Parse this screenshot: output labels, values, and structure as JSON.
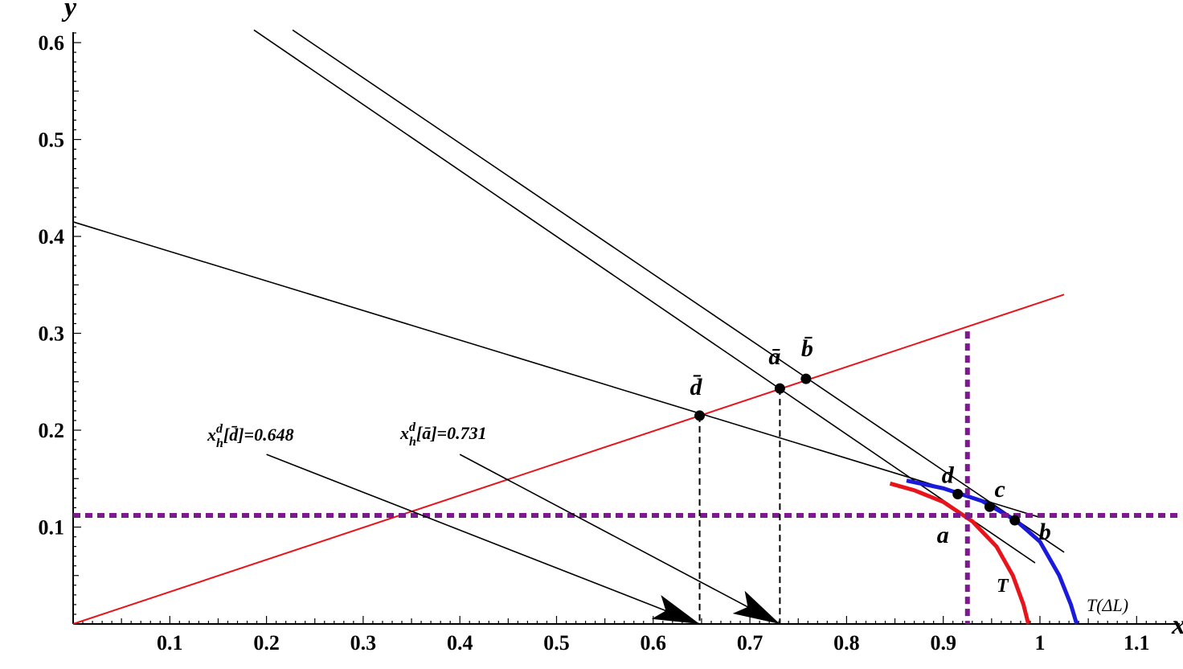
{
  "chart_data": {
    "type": "line",
    "xlabel": "x",
    "ylabel": "y",
    "xlim": [
      0,
      1.15
    ],
    "ylim": [
      0,
      0.61
    ],
    "x_ticks": [
      "0.1",
      "0.2",
      "0.3",
      "0.4",
      "0.5",
      "0.6",
      "0.7",
      "0.8",
      "0.9",
      "1",
      "1.1"
    ],
    "x_tick_values": [
      0.1,
      0.2,
      0.3,
      0.4,
      0.5,
      0.6,
      0.7,
      0.8,
      0.9,
      1.0,
      1.1
    ],
    "y_ticks": [
      "0.1",
      "0.2",
      "0.3",
      "0.4",
      "0.5",
      "0.6"
    ],
    "y_tick_values": [
      0.1,
      0.2,
      0.3,
      0.4,
      0.5,
      0.6
    ],
    "colors": {
      "ray": "#e8141b",
      "T": "#e8141b",
      "T_dL": "#1a1adb",
      "dotted": "#7a1a8c",
      "black": "#000000"
    },
    "ray": [
      [
        0.0,
        0.0
      ],
      [
        1.025,
        0.34
      ]
    ],
    "budget_lines": [
      [
        [
          0.0,
          0.415
        ],
        [
          1.0,
          0.11
        ]
      ],
      [
        [
          0.187,
          0.613
        ],
        [
          0.995,
          0.063
        ]
      ],
      [
        [
          0.227,
          0.613
        ],
        [
          1.025,
          0.074
        ]
      ]
    ],
    "curve_T": [
      [
        0.845,
        0.145
      ],
      [
        0.87,
        0.138
      ],
      [
        0.9,
        0.126
      ],
      [
        0.93,
        0.106
      ],
      [
        0.955,
        0.08
      ],
      [
        0.972,
        0.05
      ],
      [
        0.983,
        0.02
      ],
      [
        0.988,
        0.0
      ]
    ],
    "curve_T_dL": [
      [
        0.862,
        0.148
      ],
      [
        0.9,
        0.14
      ],
      [
        0.94,
        0.127
      ],
      [
        0.975,
        0.107
      ],
      [
        1.0,
        0.085
      ],
      [
        1.02,
        0.05
      ],
      [
        1.032,
        0.02
      ],
      [
        1.038,
        0.0
      ]
    ],
    "dotted_vline_x": 0.925,
    "dotted_vline_top": 0.302,
    "dotted_hline_y": 0.112,
    "dashed_drops": [
      [
        0.648,
        0.215
      ],
      [
        0.731,
        0.243
      ]
    ],
    "points": [
      {
        "label": "d̄",
        "x": 0.648,
        "y": 0.215
      },
      {
        "label": "ā",
        "x": 0.731,
        "y": 0.243
      },
      {
        "label": "b̄",
        "x": 0.758,
        "y": 0.253
      },
      {
        "label": "d",
        "x": 0.915,
        "y": 0.134
      },
      {
        "label": "c",
        "x": 0.948,
        "y": 0.121
      },
      {
        "label": "b",
        "x": 0.974,
        "y": 0.107
      },
      {
        "label": "a",
        "x": 0.925,
        "y": 0.112
      }
    ],
    "arrows": [
      {
        "from": [
          0.2,
          0.175
        ],
        "to": [
          0.648,
          0.0
        ]
      },
      {
        "from": [
          0.4,
          0.175
        ],
        "to": [
          0.731,
          0.0
        ]
      }
    ],
    "annotations": [
      {
        "text": "x_h^d[d̄]=0.648",
        "x": 0.648
      },
      {
        "text": "x_h^d[ā]=0.731",
        "x": 0.731
      }
    ],
    "curve_labels": [
      "T",
      "T(ΔL)"
    ]
  },
  "labels": {
    "ann1_base": "x",
    "ann1_sup": "d",
    "ann1_sub": "h",
    "ann1_rest": "[d̄]=0.648",
    "ann2_base": "x",
    "ann2_sup": "d",
    "ann2_sub": "h",
    "ann2_rest": "[ā]=0.731",
    "T": "T",
    "T_dL": "T(ΔL)"
  }
}
